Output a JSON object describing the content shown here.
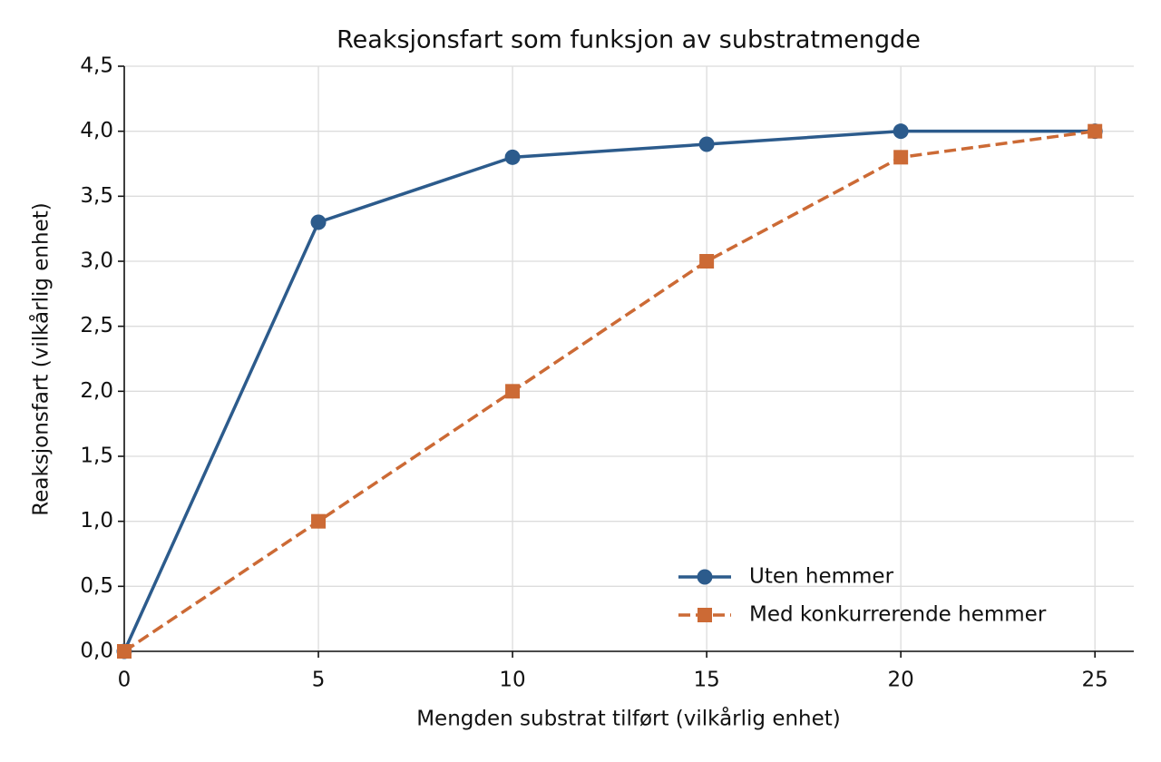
{
  "chart_data": {
    "type": "line",
    "title": "Reaksjonsfart som funksjon av substratmengde",
    "x_label": "Mengden substrat tilført (vilkårlig enhet)",
    "y_label": "Reaksjonsfart (vilkårlig enhet)",
    "x": [
      0,
      5,
      10,
      15,
      20,
      25
    ],
    "series": [
      {
        "name": "Uten hemmer",
        "color": "#2c5b8c",
        "marker": "circle",
        "linestyle": "solid",
        "values": [
          0,
          3.3,
          3.8,
          3.9,
          4.0,
          4.0
        ]
      },
      {
        "name": "Med konkurrerende hemmer",
        "color": "#cc6a35",
        "marker": "square",
        "linestyle": "dashed",
        "values": [
          0,
          1.0,
          2.0,
          3.0,
          3.8,
          4.0
        ]
      }
    ],
    "xlim": [
      0,
      26
    ],
    "xticks": [
      0,
      5,
      10,
      15,
      20,
      25
    ],
    "ylim": [
      0,
      4.5
    ],
    "yticks": [
      {
        "value": 0,
        "label": "0,0"
      },
      {
        "value": 0.5,
        "label": "0,5"
      },
      {
        "value": 1,
        "label": "1,0"
      },
      {
        "value": 1.5,
        "label": "1,5"
      },
      {
        "value": 2,
        "label": "2,0"
      },
      {
        "value": 2.5,
        "label": "2,5"
      },
      {
        "value": 3,
        "label": "3,0"
      },
      {
        "value": 3.5,
        "label": "3,5"
      },
      {
        "value": 4,
        "label": "4,0"
      },
      {
        "value": 4.5,
        "label": "4,5"
      }
    ],
    "grid": true,
    "legend": "lower right"
  }
}
